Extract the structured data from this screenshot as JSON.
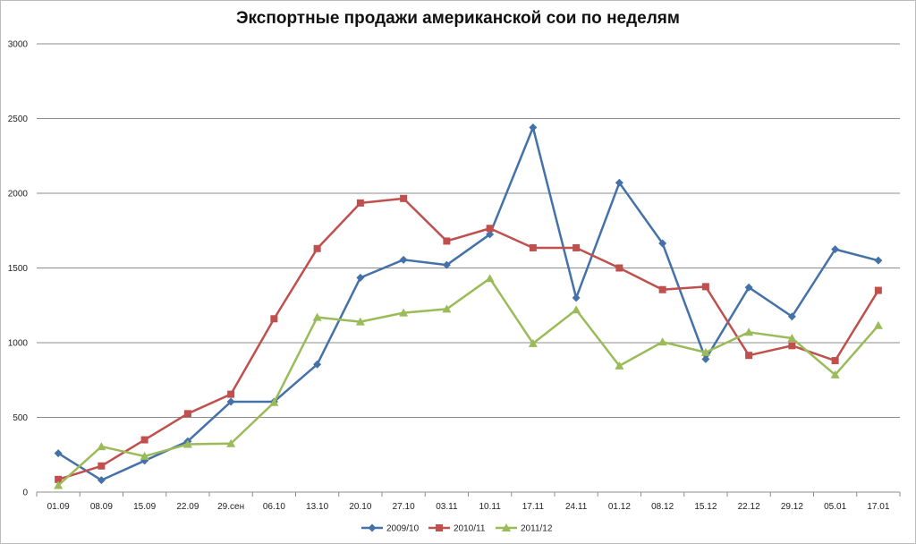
{
  "chart_data": {
    "type": "line",
    "title": "Экспортные продажи американской сои по неделям",
    "xlabel": "",
    "ylabel": "",
    "categories": [
      "01.09",
      "08.09",
      "15.09",
      "22.09",
      "29.сен",
      "06.10",
      "13.10",
      "20.10",
      "27.10",
      "03.11",
      "10.11",
      "17.11",
      "24.11",
      "01.12",
      "08.12",
      "15.12",
      "22.12",
      "29.12",
      "05.01",
      "17.01"
    ],
    "ylim": [
      0,
      3000
    ],
    "yticks": [
      0,
      500,
      1000,
      1500,
      2000,
      2500,
      3000
    ],
    "grid": true,
    "legend_position": "bottom",
    "series": [
      {
        "name": "2009/10",
        "color": "#4472a8",
        "marker": "diamond",
        "values": [
          260,
          80,
          210,
          340,
          605,
          605,
          855,
          1435,
          1555,
          1520,
          1725,
          2440,
          1300,
          2070,
          1665,
          890,
          1370,
          1175,
          1625,
          1550
        ]
      },
      {
        "name": "2010/11",
        "color": "#c0504d",
        "marker": "square",
        "values": [
          85,
          175,
          350,
          525,
          655,
          1160,
          1630,
          1935,
          1965,
          1680,
          1765,
          1635,
          1635,
          1500,
          1355,
          1375,
          915,
          980,
          880,
          1350
        ]
      },
      {
        "name": "2011/12",
        "color": "#9bbb59",
        "marker": "triangle",
        "values": [
          45,
          305,
          240,
          320,
          325,
          600,
          1170,
          1140,
          1200,
          1225,
          1430,
          995,
          1220,
          845,
          1005,
          935,
          1070,
          1030,
          785,
          1115
        ]
      }
    ]
  }
}
